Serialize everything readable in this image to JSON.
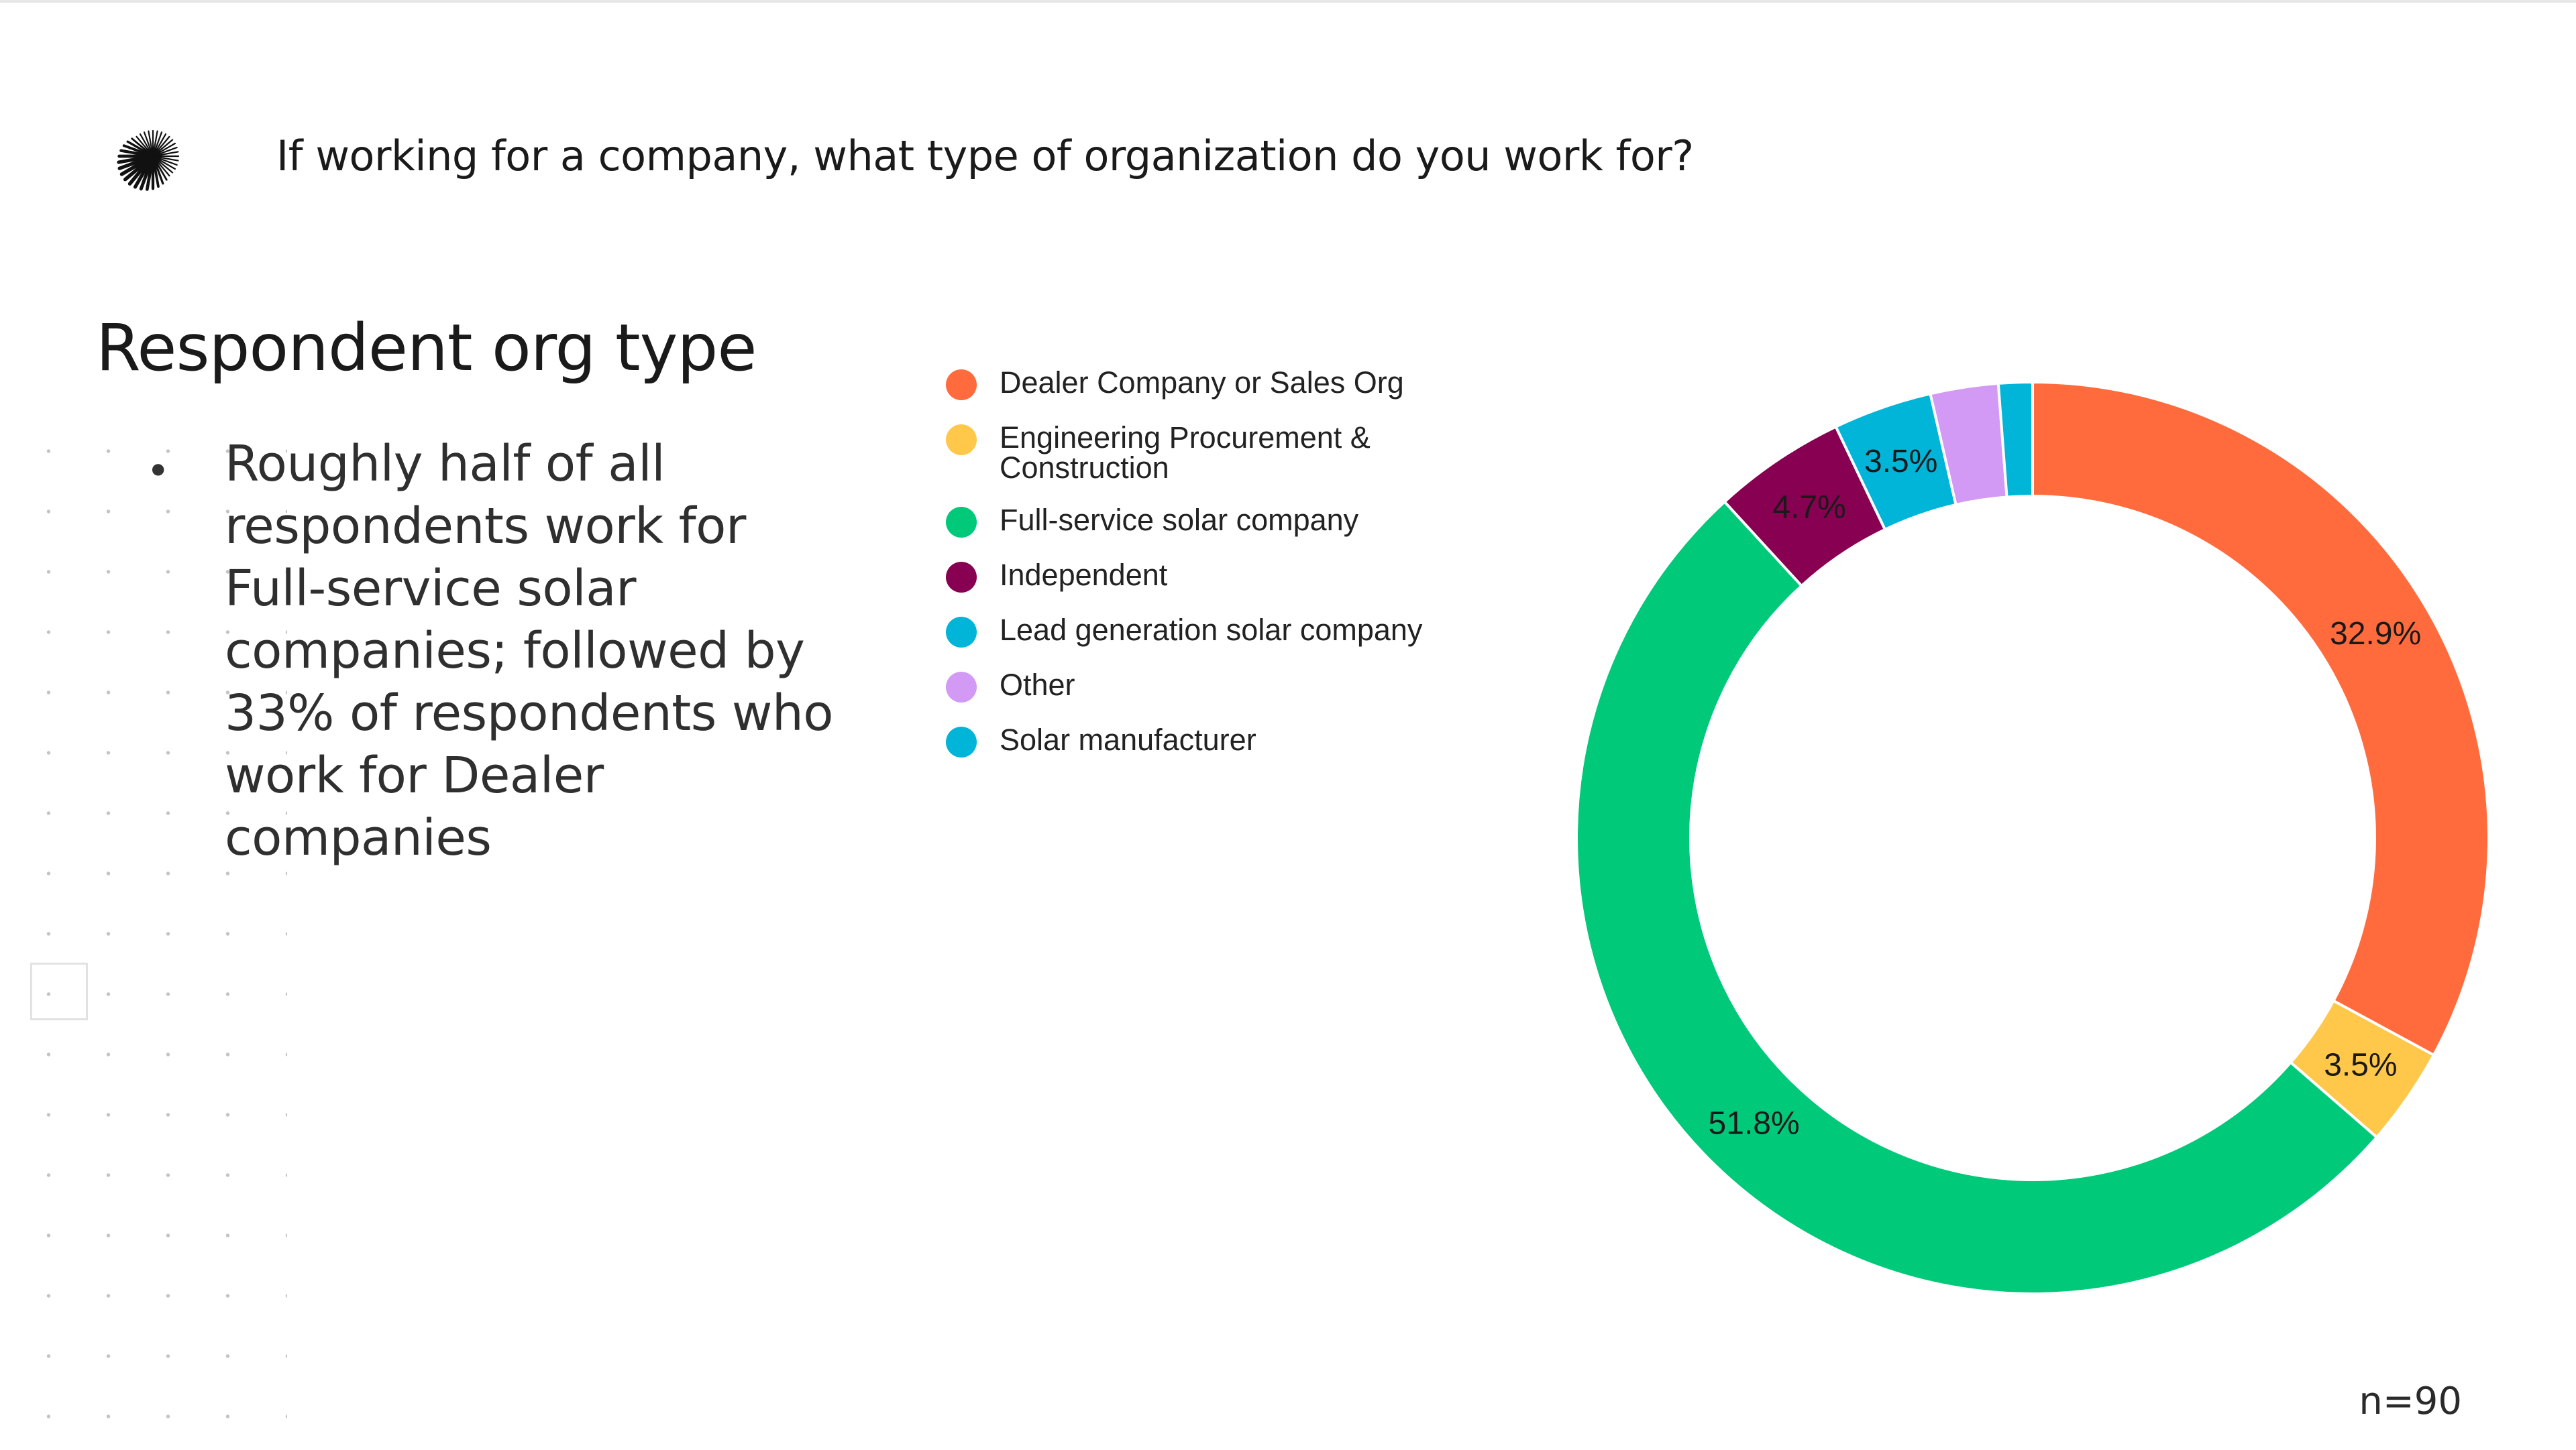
{
  "header": {
    "question": "If working for a company, what type of organization do you work for?"
  },
  "slide": {
    "title": "Respondent org type",
    "bullet": "Roughly half of all respondents work for Full-service solar companies; followed by 33% of respondents who work for Dealer companies",
    "footnote": "n=90"
  },
  "chart_data": {
    "type": "pie",
    "variant": "donut",
    "title": "",
    "legend_position": "left",
    "slices": [
      {
        "name": "Dealer Company or Sales Org",
        "value": 32.9,
        "label": "32.9%",
        "color": "#ff6b3d"
      },
      {
        "name": "Engineering Procurement & Construction",
        "value": 3.5,
        "label": "3.5%",
        "color": "#ffc84a"
      },
      {
        "name": "Full-service solar company",
        "value": 51.8,
        "label": "51.8%",
        "color": "#00c97a"
      },
      {
        "name": "Independent",
        "value": 4.7,
        "label": "4.7%",
        "color": "#870052"
      },
      {
        "name": "Lead generation solar company",
        "value": 3.5,
        "label": "3.5%",
        "color": "#00b5d8"
      },
      {
        "name": "Other",
        "value": 2.4,
        "label": "",
        "color": "#d39af5"
      },
      {
        "name": "Solar manufacturer",
        "value": 1.2,
        "label": "",
        "color": "#00b5d8"
      }
    ]
  }
}
